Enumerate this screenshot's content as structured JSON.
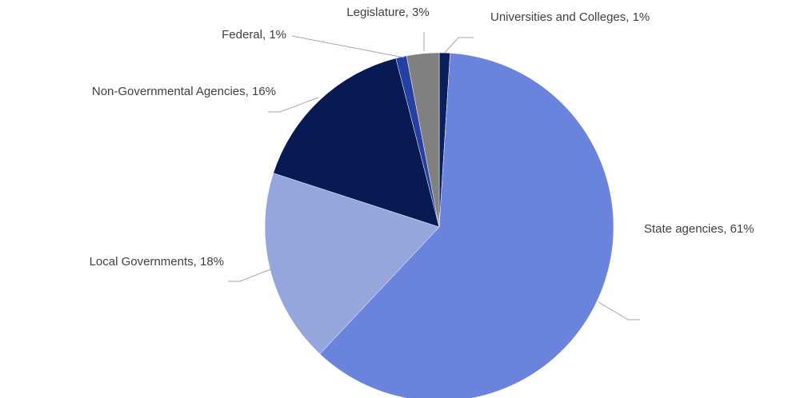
{
  "chart_data": {
    "type": "pie",
    "labels": [
      "Universities and Colleges, 1%",
      "State agencies, 61%",
      "Local Governments, 18%",
      "Non-Governmental Agencies, 16%",
      "Federal, 1%",
      "Legislature, 3%"
    ],
    "values": [
      1,
      61,
      18,
      16,
      1,
      3
    ],
    "colors": [
      "#0b1f5c",
      "#6a84de",
      "#95a6dc",
      "#071a54",
      "#2540a2",
      "#808080"
    ]
  }
}
